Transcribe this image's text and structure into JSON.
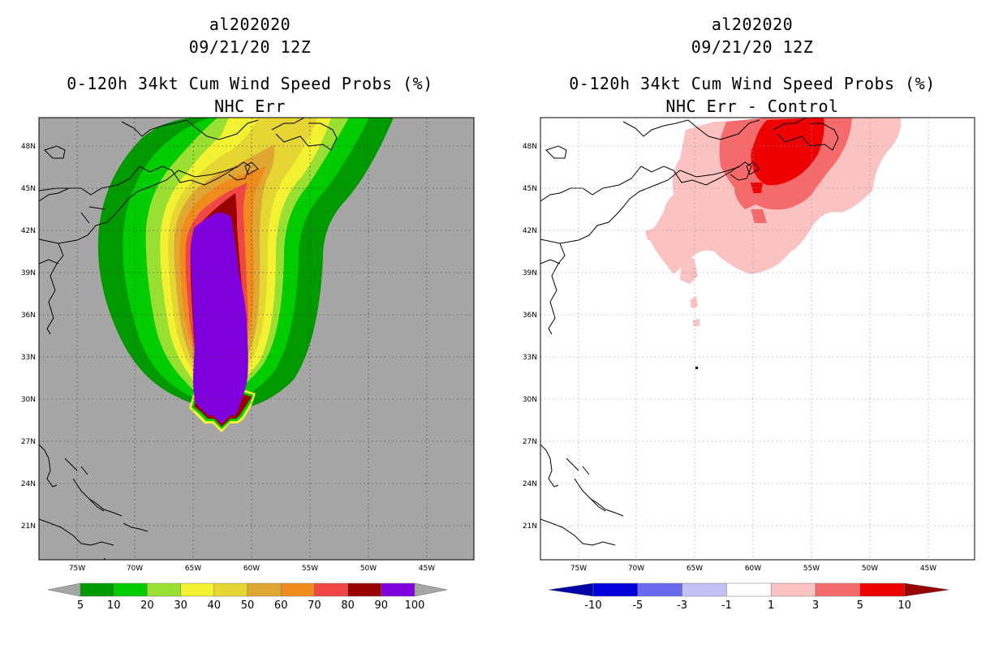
{
  "left_panel": {
    "storm_id": "al202020",
    "datetime": "09/21/20 12Z",
    "product_title": "0-120h 34kt Cum Wind Speed Probs (%)",
    "subtitle": "NHC Err",
    "colorbar": {
      "labels": [
        "5",
        "10",
        "20",
        "30",
        "40",
        "50",
        "60",
        "70",
        "80",
        "90",
        "100"
      ],
      "colors": [
        "#009900",
        "#00cc00",
        "#99e033",
        "#f2f233",
        "#e6d633",
        "#e0a833",
        "#f08c1e",
        "#f04646",
        "#990000",
        "#8000dd"
      ],
      "under_color": "#a6a6a6",
      "over_color": "#a6a6a6"
    }
  },
  "right_panel": {
    "storm_id": "al202020",
    "datetime": "09/21/20 12Z",
    "product_title": "0-120h 34kt Cum Wind Speed Probs (%)",
    "subtitle": "NHC Err - Control",
    "colorbar": {
      "labels": [
        "-10",
        "-5",
        "-3",
        "-1",
        "1",
        "3",
        "5",
        "10"
      ],
      "colors": [
        "#0000dd",
        "#6a6aee",
        "#c2c2f6",
        "#ffffff",
        "#fbc2c2",
        "#f56a6a",
        "#ee0000"
      ],
      "under_color": "#0000aa",
      "over_color": "#990000"
    }
  },
  "map_axes": {
    "lon_labels": [
      "75W",
      "70W",
      "65W",
      "60W",
      "55W",
      "50W",
      "45W"
    ],
    "lat_labels": [
      "48N",
      "45N",
      "42N",
      "39N",
      "36N",
      "33N",
      "30N",
      "27N",
      "24N",
      "21N"
    ]
  },
  "colors": {
    "land_sea_gray": "#a6a6a6",
    "gridline": "#bbbbbb"
  }
}
